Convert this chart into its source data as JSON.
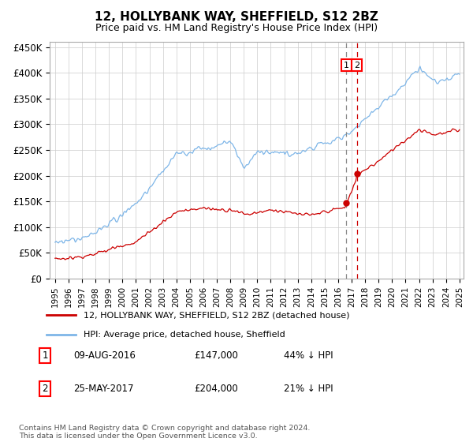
{
  "title": "12, HOLLYBANK WAY, SHEFFIELD, S12 2BZ",
  "subtitle": "Price paid vs. HM Land Registry's House Price Index (HPI)",
  "ylim": [
    0,
    460000
  ],
  "yticks": [
    0,
    50000,
    100000,
    150000,
    200000,
    250000,
    300000,
    350000,
    400000,
    450000
  ],
  "ytick_labels": [
    "£0",
    "£50K",
    "£100K",
    "£150K",
    "£200K",
    "£250K",
    "£300K",
    "£350K",
    "£400K",
    "£450K"
  ],
  "hpi_color": "#7EB6E8",
  "property_color": "#CC0000",
  "vline1_color": "#888888",
  "vline2_color": "#CC0000",
  "transaction1_date": 2016.604,
  "transaction1_price": 147000,
  "transaction2_date": 2017.388,
  "transaction2_price": 204000,
  "legend_property": "12, HOLLYBANK WAY, SHEFFIELD, S12 2BZ (detached house)",
  "legend_hpi": "HPI: Average price, detached house, Sheffield",
  "table_row1": [
    "1",
    "09-AUG-2016",
    "£147,000",
    "44% ↓ HPI"
  ],
  "table_row2": [
    "2",
    "25-MAY-2017",
    "£204,000",
    "21% ↓ HPI"
  ],
  "footer": "Contains HM Land Registry data © Crown copyright and database right 2024.\nThis data is licensed under the Open Government Licence v3.0.",
  "background_color": "#ffffff",
  "grid_color": "#cccccc",
  "title_fontsize": 11,
  "subtitle_fontsize": 9
}
